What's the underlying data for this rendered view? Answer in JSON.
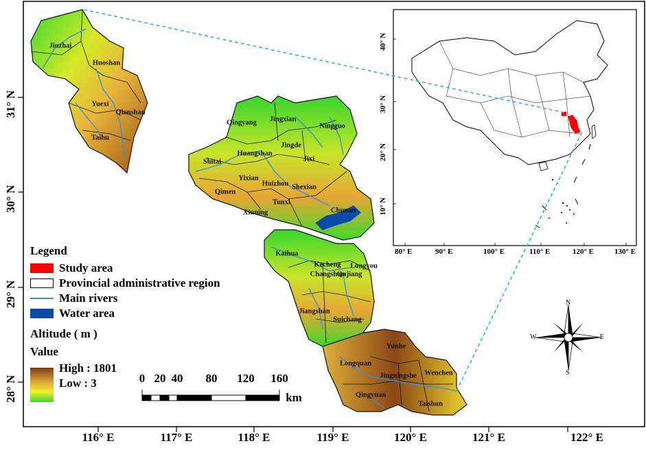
{
  "map": {
    "x_axis_labels": [
      "116° E",
      "117° E",
      "118° E",
      "119° E",
      "120° E",
      "121° E",
      "122° E"
    ],
    "y_axis_labels": [
      "31° N",
      "30° N",
      "29° N",
      "28° N"
    ],
    "counties": [
      "Jinzhai",
      "Huoshan",
      "Yuexi",
      "Qianshan",
      "Taihu",
      "Qingyang",
      "Jingxian",
      "Ningguo",
      "Jingde",
      "Shitai",
      "Huangshan",
      "Jixi",
      "Yixian",
      "Huizhou",
      "Shexian",
      "Qimen",
      "Tunxi",
      "Chunan",
      "Xiuning",
      "Kaihua",
      "Kecheng",
      "Longyou",
      "Changshan",
      "Qujiang",
      "Jiangshan",
      "Suichang",
      "Yunhe",
      "Longquan",
      "Jingningshe",
      "Wenchen",
      "Qingyuan",
      "Taishun"
    ]
  },
  "legend": {
    "title": "Legend",
    "items": [
      {
        "label": "Study area",
        "color": "#ff0000"
      },
      {
        "label": "Provincial administrative region",
        "color": "#ffffff"
      },
      {
        "label": "Main  rivers",
        "color": "#3b8fd9"
      },
      {
        "label": "Water area",
        "color": "#0a4aa8"
      }
    ],
    "altitude_title": "Altitude ( m )",
    "value_title": "Value",
    "high_label": "High : 1801",
    "low_label": "Low : 3",
    "ramp_colors": [
      "#7a3d12",
      "#d8a23a",
      "#f5ee2a",
      "#3cdb2c"
    ]
  },
  "scale_bar": {
    "labels": [
      "0",
      "20",
      "40",
      "80",
      "120",
      "160"
    ],
    "unit": "km"
  },
  "inset": {
    "x_labels": [
      "80° E",
      "90° E",
      "100° E",
      "110° E",
      "120° E",
      "130° E"
    ],
    "y_labels": [
      "40° N",
      "30° N",
      "20° N",
      "10° N"
    ],
    "highlight_color": "#ff0000",
    "connector_color": "#2bb5e6"
  },
  "compass": {
    "n": "N",
    "s": "S",
    "e": "E",
    "w": "W"
  }
}
